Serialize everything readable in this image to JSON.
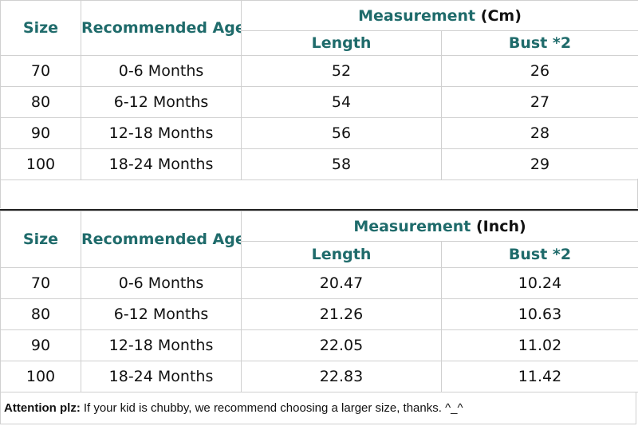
{
  "cm_table": {
    "headers": {
      "size": "Size",
      "age": "Recommended Age",
      "measurement": "Measurement",
      "unit": "(Cm)",
      "length": "Length",
      "bust": "Bust *2"
    },
    "rows": [
      {
        "size": "70",
        "age": "0-6 Months",
        "length": "52",
        "bust": "26"
      },
      {
        "size": "80",
        "age": "6-12 Months",
        "length": "54",
        "bust": "27"
      },
      {
        "size": "90",
        "age": "12-18 Months",
        "length": "56",
        "bust": "28"
      },
      {
        "size": "100",
        "age": "18-24 Months",
        "length": "58",
        "bust": "29"
      }
    ]
  },
  "inch_table": {
    "headers": {
      "size": "Size",
      "age": "Recommended Age",
      "measurement": "Measurement",
      "unit": "(Inch)",
      "length": "Length",
      "bust": "Bust *2"
    },
    "rows": [
      {
        "size": "70",
        "age": "0-6 Months",
        "length": "20.47",
        "bust": "10.24"
      },
      {
        "size": "80",
        "age": "6-12 Months",
        "length": "21.26",
        "bust": "10.63"
      },
      {
        "size": "90",
        "age": "12-18 Months",
        "length": "22.05",
        "bust": "11.02"
      },
      {
        "size": "100",
        "age": "18-24 Months",
        "length": "22.83",
        "bust": "11.42"
      }
    ]
  },
  "note": {
    "label": "Attention plz:",
    "text": "If your kid is chubby, we recommend choosing a larger size, thanks. ^_^"
  }
}
